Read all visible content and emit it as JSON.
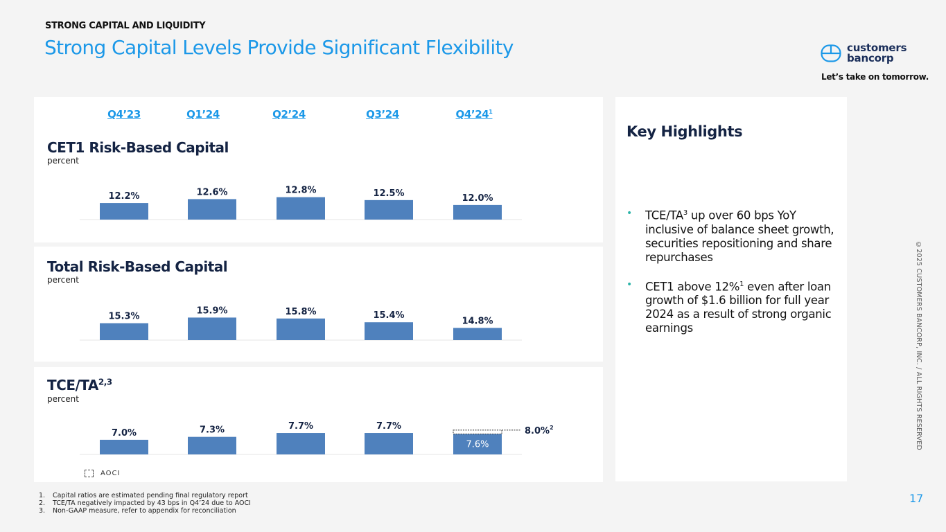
{
  "header": {
    "eyebrow": "STRONG CAPITAL AND LIQUIDITY",
    "title": "Strong Capital Levels Provide Significant Flexibility"
  },
  "brand": {
    "logo_icon": "customers-bancorp-logo-icon",
    "name_line1": "customers",
    "name_line2": "bancorp",
    "tagline": "Let’s take on tomorrow."
  },
  "quarters": [
    {
      "label": "Q4’23",
      "sup": ""
    },
    {
      "label": "Q1’24",
      "sup": ""
    },
    {
      "label": "Q2’24",
      "sup": ""
    },
    {
      "label": "Q3’24",
      "sup": ""
    },
    {
      "label": "Q4’24",
      "sup": "1"
    }
  ],
  "colors": {
    "bar": "#4f81bd",
    "accent": "#1b98e8",
    "navy": "#142343",
    "bullet": "#2bb3a8"
  },
  "chart_data": [
    {
      "type": "bar",
      "title": "CET1 Risk-Based Capital",
      "title_sup": "",
      "subtitle": "percent",
      "categories": [
        "Q4'23",
        "Q1'24",
        "Q2'24",
        "Q3'24",
        "Q4'24"
      ],
      "values": [
        12.2,
        12.6,
        12.8,
        12.5,
        12.0
      ],
      "labels": [
        "12.2%",
        "12.6%",
        "12.8%",
        "12.5%",
        "12.0%"
      ],
      "unit": "%",
      "ylim": [
        10.5,
        13.2
      ],
      "grid": false
    },
    {
      "type": "bar",
      "title": "Total Risk-Based Capital",
      "title_sup": "",
      "subtitle": "percent",
      "categories": [
        "Q4'23",
        "Q1'24",
        "Q2'24",
        "Q3'24",
        "Q4'24"
      ],
      "values": [
        15.3,
        15.9,
        15.8,
        15.4,
        14.8
      ],
      "labels": [
        "15.3%",
        "15.9%",
        "15.8%",
        "15.4%",
        "14.8%"
      ],
      "unit": "%",
      "ylim": [
        13.5,
        16.3
      ],
      "grid": false
    },
    {
      "type": "bar",
      "title": "TCE/TA",
      "title_sup": "2,3",
      "subtitle": "percent",
      "categories": [
        "Q4'23",
        "Q1'24",
        "Q2'24",
        "Q3'24",
        "Q4'24"
      ],
      "values": [
        7.0,
        7.3,
        7.7,
        7.7,
        7.6
      ],
      "labels": [
        "7.0%",
        "7.3%",
        "7.7%",
        "7.7%",
        "7.6%"
      ],
      "inside_label_index": 4,
      "aoci_adjusted": {
        "category": "Q4'24",
        "value": 8.0,
        "label": "8.0%",
        "sup": "2"
      },
      "legend": [
        {
          "name": "AOCI",
          "style": "dashed-outline"
        }
      ],
      "unit": "%",
      "ylim": [
        5.5,
        8.2
      ],
      "grid": false
    }
  ],
  "key_highlights": {
    "title": "Key Highlights",
    "items": [
      {
        "pre": "TCE/TA",
        "sup": "3",
        "post": " up over 60 bps YoY inclusive of balance sheet growth, securities repositioning and share repurchases"
      },
      {
        "pre": "CET1 above 12%",
        "sup": "1",
        "post": " even after loan growth of $1.6 billion for full year 2024 as a result of strong organic earnings"
      }
    ]
  },
  "footnotes": [
    {
      "num": "1.",
      "text": "Capital ratios are estimated pending final regulatory report"
    },
    {
      "num": "2.",
      "text": "TCE/TA negatively impacted by 43 bps in Q4’24 due to AOCI"
    },
    {
      "num": "3.",
      "text": "Non-GAAP measure, refer to appendix for reconciliation"
    }
  ],
  "copyright": "©2025 CUSTOMERS BANCORP, INC. / ALL RIGHTS RESERVED",
  "page_number": "17"
}
